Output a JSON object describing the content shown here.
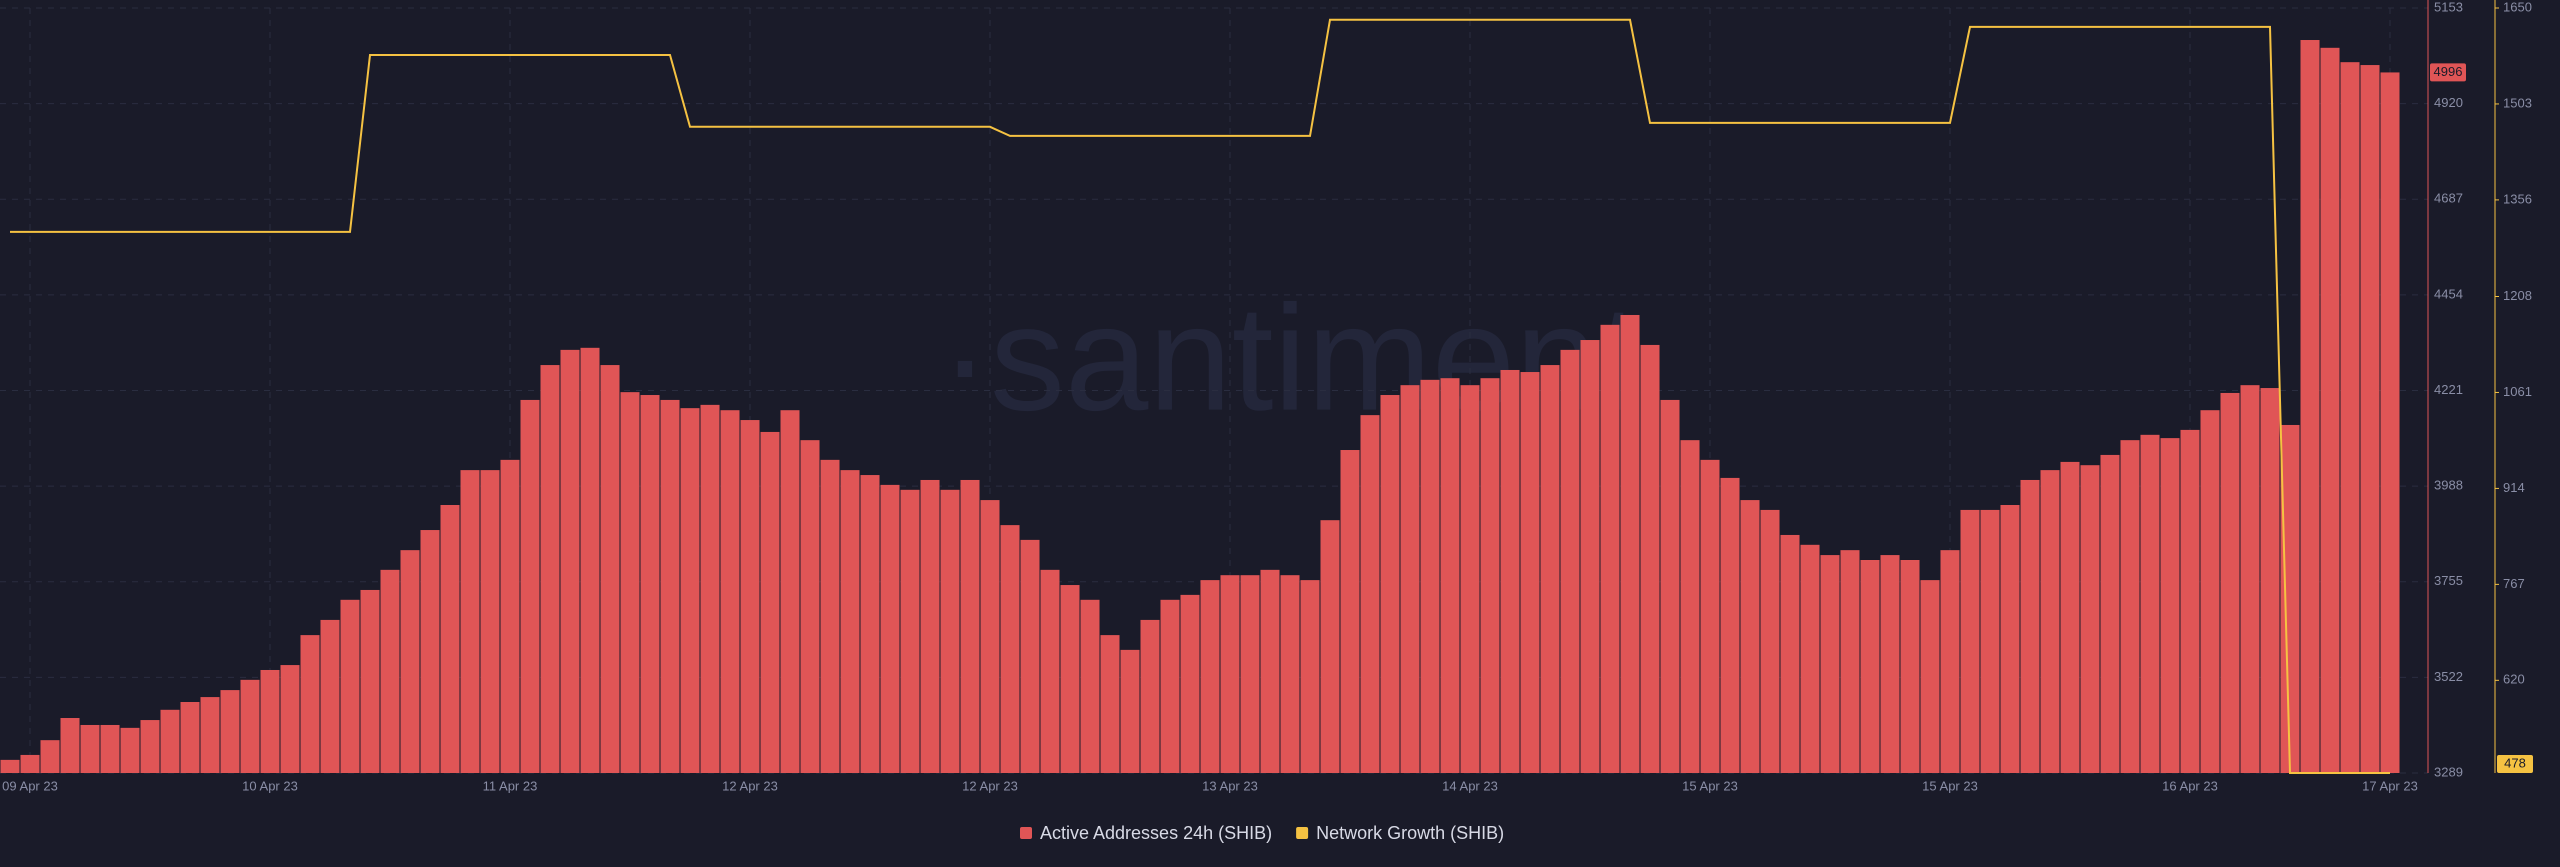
{
  "chart_data": {
    "type": "bar-line",
    "watermark": "·santiment",
    "categories": [
      null,
      "09 Apr 23",
      null,
      null,
      null,
      null,
      null,
      null,
      null,
      null,
      null,
      null,
      null,
      "10 Apr 23",
      null,
      null,
      null,
      null,
      null,
      null,
      null,
      null,
      null,
      null,
      null,
      "11 Apr 23",
      null,
      null,
      null,
      null,
      null,
      null,
      null,
      null,
      null,
      null,
      null,
      "12 Apr 23",
      null,
      null,
      null,
      null,
      null,
      null,
      null,
      null,
      null,
      null,
      null,
      "12 Apr 23",
      null,
      null,
      null,
      null,
      null,
      null,
      null,
      null,
      null,
      null,
      null,
      "13 Apr 23",
      null,
      null,
      null,
      null,
      null,
      null,
      null,
      null,
      null,
      null,
      null,
      "14 Apr 23",
      null,
      null,
      null,
      null,
      null,
      null,
      null,
      null,
      null,
      null,
      null,
      "15 Apr 23",
      null,
      null,
      null,
      null,
      null,
      null,
      null,
      null,
      null,
      null,
      null,
      "15 Apr 23",
      null,
      null,
      null,
      null,
      null,
      null,
      null,
      null,
      null,
      null,
      null,
      "16 Apr 23",
      null,
      null,
      null,
      null,
      null,
      null,
      null,
      null,
      null,
      "17 Apr 23"
    ],
    "series": [
      {
        "name": "Active Addresses 24h (SHIB)",
        "color": "#e05556",
        "kind": "bar",
        "axis": "y",
        "values": [
          3321,
          3333,
          3369,
          3423,
          3406,
          3406,
          3399,
          3418,
          3443,
          3462,
          3474,
          3491,
          3516,
          3540,
          3552,
          3625,
          3662,
          3711,
          3735,
          3784,
          3832,
          3881,
          3942,
          4027,
          4027,
          4052,
          4198,
          4283,
          4320,
          4325,
          4283,
          4217,
          4210,
          4198,
          4178,
          4186,
          4173,
          4149,
          4120,
          4173,
          4100,
          4052,
          4027,
          4015,
          3991,
          3979,
          4003,
          3979,
          4003,
          3954,
          3893,
          3857,
          3784,
          3747,
          3711,
          3625,
          3589,
          3662,
          3711,
          3723,
          3759,
          3771,
          3771,
          3784,
          3771,
          3759,
          3905,
          4076,
          4161,
          4210,
          4234,
          4247,
          4251,
          4234,
          4251,
          4271,
          4266,
          4283,
          4320,
          4344,
          4381,
          4405,
          4332,
          4198,
          4100,
          4052,
          4008,
          3954,
          3930,
          3869,
          3845,
          3820,
          3832,
          3808,
          3820,
          3808,
          3759,
          3832,
          3930,
          3930,
          3942,
          4003,
          4027,
          4047,
          4039,
          4064,
          4100,
          4113,
          4105,
          4125,
          4173,
          4215,
          4234,
          4227,
          4137,
          5075,
          5056,
          5021,
          5014,
          4996
        ]
      },
      {
        "name": "Network Growth (SHIB)",
        "color": "#f5c242",
        "kind": "line",
        "axis": "y2",
        "values": [
          1307,
          1307,
          1307,
          1307,
          1307,
          1307,
          1307,
          1307,
          1307,
          1307,
          1307,
          1307,
          1307,
          1307,
          1307,
          1307,
          1307,
          1307,
          1578,
          1578,
          1578,
          1578,
          1578,
          1578,
          1578,
          1578,
          1578,
          1578,
          1578,
          1578,
          1578,
          1578,
          1578,
          1578,
          1468,
          1468,
          1468,
          1468,
          1468,
          1468,
          1468,
          1468,
          1468,
          1468,
          1468,
          1468,
          1468,
          1468,
          1468,
          1468,
          1454,
          1454,
          1454,
          1454,
          1454,
          1454,
          1454,
          1454,
          1454,
          1454,
          1454,
          1454,
          1454,
          1454,
          1454,
          1454,
          1632,
          1632,
          1632,
          1632,
          1632,
          1632,
          1632,
          1632,
          1632,
          1632,
          1632,
          1632,
          1632,
          1632,
          1632,
          1632,
          1474,
          1474,
          1474,
          1474,
          1474,
          1474,
          1474,
          1474,
          1474,
          1474,
          1474,
          1474,
          1474,
          1474,
          1474,
          1474,
          1621,
          1621,
          1621,
          1621,
          1621,
          1621,
          1621,
          1621,
          1621,
          1621,
          1621,
          1621,
          1621,
          1621,
          1621,
          1621,
          478,
          478,
          478,
          478,
          478,
          478
        ]
      }
    ],
    "ylim": [
      3289,
      5153
    ],
    "yticks": [
      3289,
      3522,
      3755,
      3988,
      4221,
      4454,
      4687,
      4920,
      5153
    ],
    "y2lim": [
      478,
      1650
    ],
    "y2ticks": [
      620,
      767,
      914,
      1061,
      1208,
      1356,
      1503,
      1650
    ],
    "grid": true,
    "legend": "bottom"
  }
}
